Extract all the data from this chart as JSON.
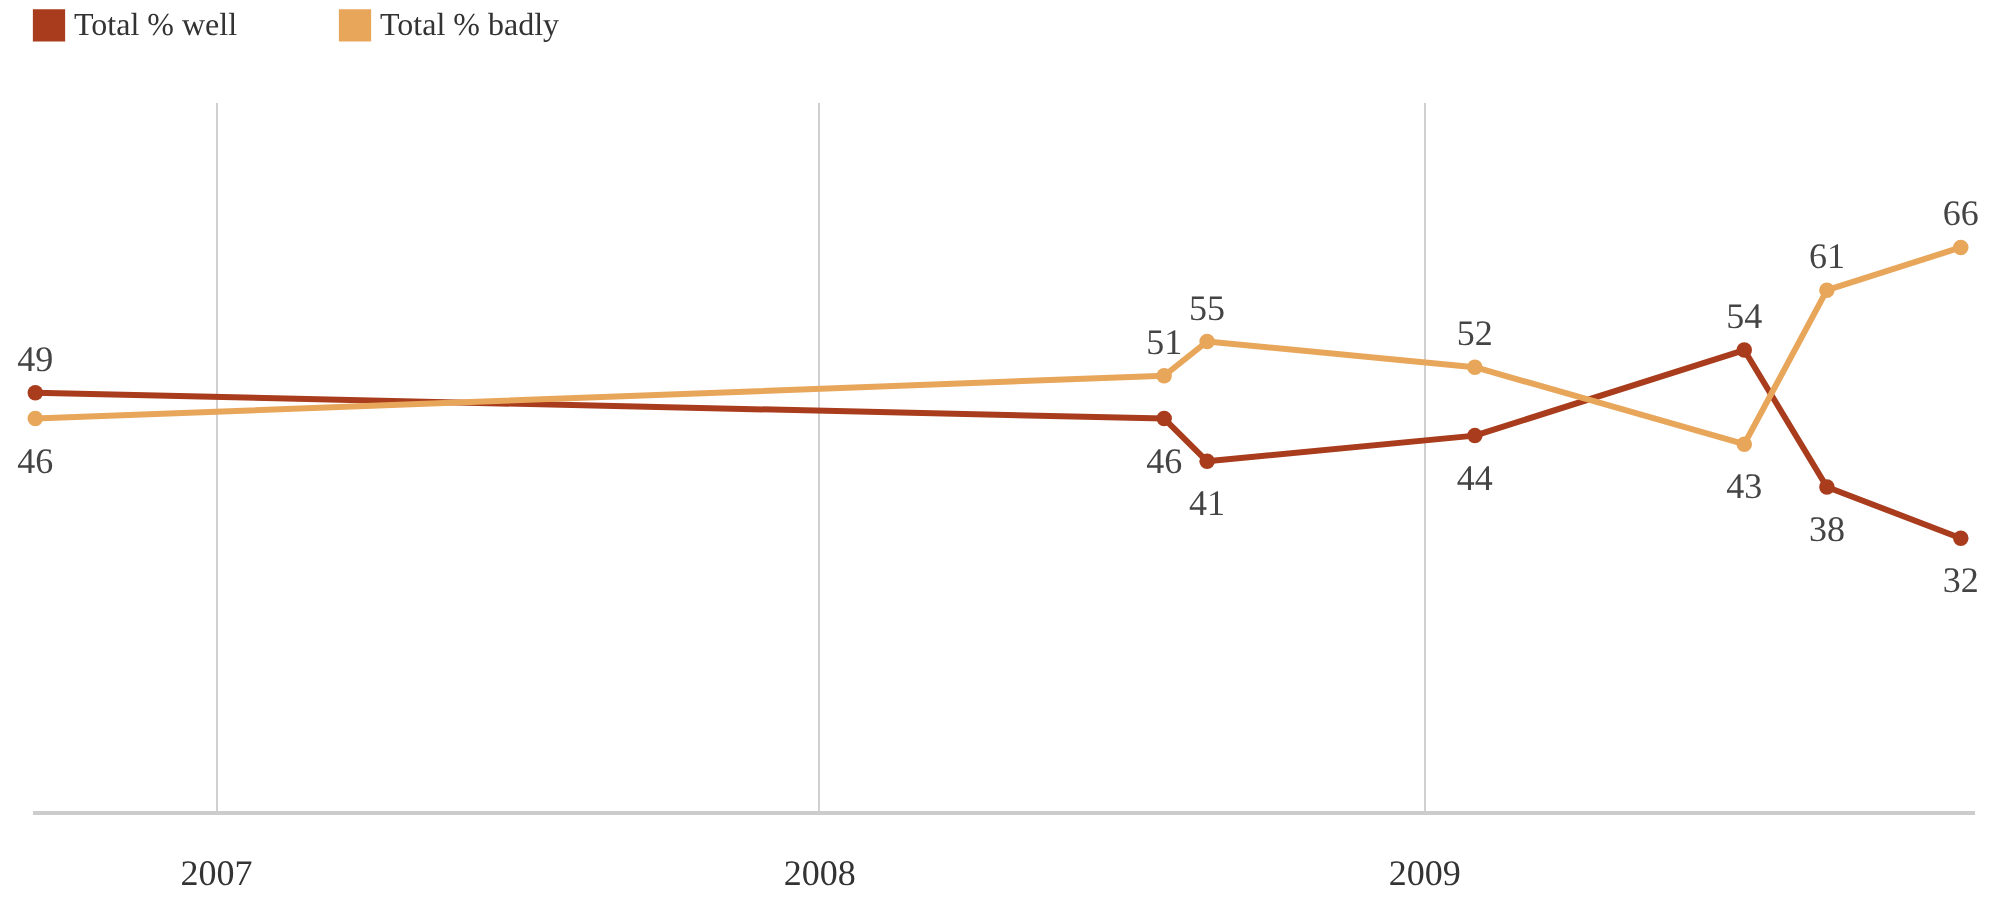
{
  "chart_data": {
    "type": "line",
    "x": [
      "2006-09-14",
      "2008-07-28",
      "2008-08-23",
      "2009-02-01",
      "2009-07-14",
      "2009-09-02",
      "2009-11-22"
    ],
    "series": [
      {
        "name": "Total % well",
        "color": "#a83c1c",
        "values": [
          49,
          46,
          41,
          44,
          54,
          38,
          32
        ]
      },
      {
        "name": "Total % badly",
        "color": "#e8a65a",
        "values": [
          46,
          51,
          55,
          52,
          43,
          61,
          66
        ]
      }
    ],
    "xlim": [
      "2006-09-12",
      "2009-11-30"
    ],
    "xticks": [
      {
        "value": "2007",
        "label": "2007"
      },
      {
        "value": "2008",
        "label": "2008"
      },
      {
        "value": "2009",
        "label": "2009"
      }
    ],
    "ylim": [
      0,
      83
    ],
    "tick_labels": "x",
    "grid": "x",
    "legend": "top left",
    "marker": "circle",
    "line_style": "solid",
    "data_labels": true
  }
}
